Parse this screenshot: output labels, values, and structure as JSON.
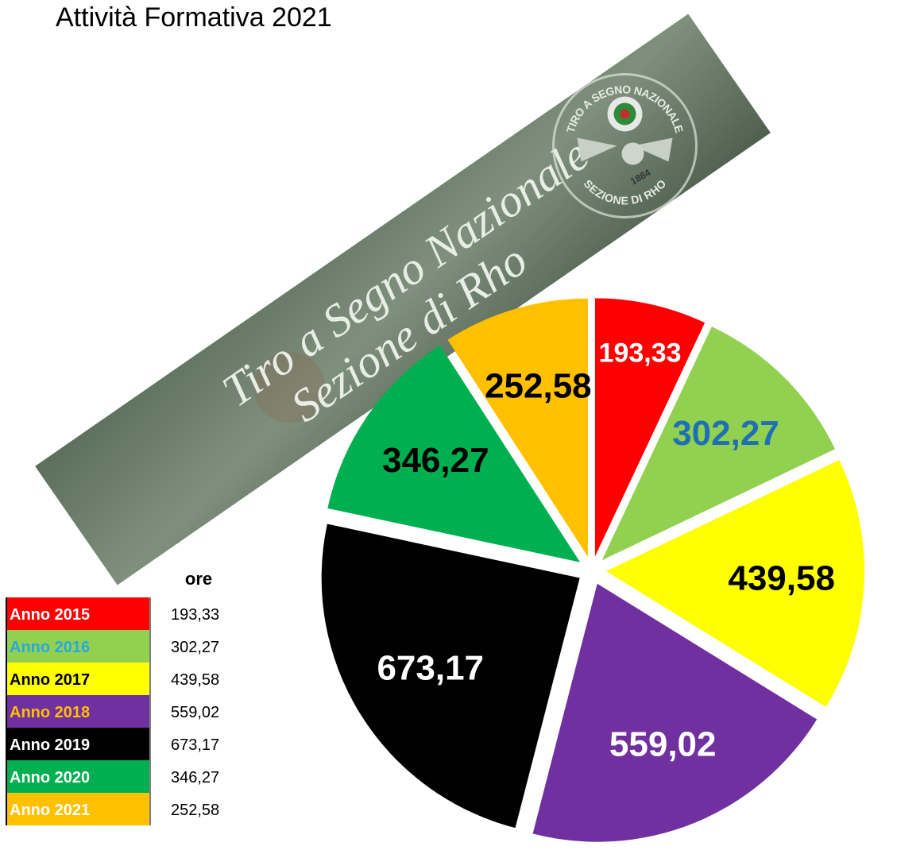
{
  "chart_data": {
    "type": "pie",
    "title": "Attività Formativa 2021",
    "categories": [
      "Anno 2015",
      "Anno 2016",
      "Anno 2017",
      "Anno 2018",
      "Anno 2019",
      "Anno 2020",
      "Anno 2021"
    ],
    "values": [
      193.33,
      302.27,
      439.58,
      559.02,
      673.17,
      346.27,
      252.58
    ],
    "value_labels": [
      "193,33",
      "302,27",
      "439,58",
      "559,02",
      "673,17",
      "346,27",
      "252,58"
    ],
    "colors": [
      "#ff0000",
      "#92d050",
      "#ffff00",
      "#7030a0",
      "#000000",
      "#00b050",
      "#ffc000"
    ],
    "label_colors": [
      "#ffffff",
      "#1f6fb5",
      "#000000",
      "#ffffff",
      "#ffffff",
      "#000000",
      "#000000"
    ],
    "legend_label_colors": [
      "#ffffff",
      "#29a8e0",
      "#000000",
      "#ffc000",
      "#ffffff",
      "#ffffff",
      "#ffffff"
    ],
    "value_header": "ore"
  },
  "banner": {
    "line1": "Tiro a Segno Nazionale",
    "line2": "Sezione di Rho",
    "emblem_top": "TIRO A SEGNO NAZIONALE",
    "emblem_bottom": "SEZIONE DI RHO",
    "year": "1884"
  }
}
